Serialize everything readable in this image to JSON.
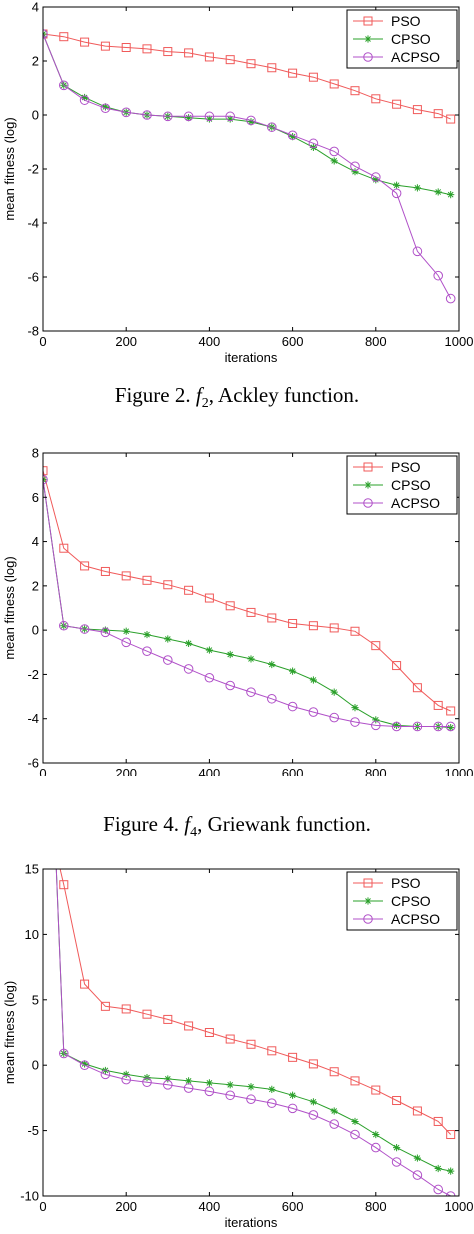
{
  "captions": [
    {
      "prefix": "Figure 2. ",
      "fname": "f",
      "fsub": "2",
      "suffix": ", Ackley function."
    },
    {
      "prefix": "Figure 4. ",
      "fname": "f",
      "fsub": "4",
      "suffix": ", Griewank function."
    }
  ],
  "chart_data": [
    {
      "type": "line",
      "title": "",
      "xlabel": "iterations",
      "ylabel": "mean fitness (log)",
      "xlim": [
        0,
        1000
      ],
      "ylim": [
        -8,
        4
      ],
      "xticks": [
        0,
        200,
        400,
        600,
        800,
        1000
      ],
      "yticks": [
        -8,
        -6,
        -4,
        -2,
        0,
        2,
        4
      ],
      "grid": false,
      "legend": "top-right",
      "series": [
        {
          "name": "PSO",
          "color": "#f05a5a",
          "marker": "square",
          "x": [
            0,
            50,
            100,
            150,
            200,
            250,
            300,
            350,
            400,
            450,
            500,
            550,
            600,
            650,
            700,
            750,
            800,
            850,
            900,
            950,
            980
          ],
          "y": [
            3.0,
            2.9,
            2.7,
            2.55,
            2.5,
            2.45,
            2.35,
            2.3,
            2.15,
            2.05,
            1.9,
            1.75,
            1.55,
            1.4,
            1.15,
            0.9,
            0.6,
            0.4,
            0.2,
            0.05,
            -0.15
          ]
        },
        {
          "name": "CPSO",
          "color": "#2aa02a",
          "marker": "star",
          "x": [
            0,
            50,
            100,
            150,
            200,
            250,
            300,
            350,
            400,
            450,
            500,
            550,
            600,
            650,
            700,
            750,
            800,
            850,
            900,
            950,
            980
          ],
          "y": [
            3.0,
            1.1,
            0.65,
            0.3,
            0.1,
            0.0,
            -0.05,
            -0.1,
            -0.15,
            -0.15,
            -0.25,
            -0.45,
            -0.8,
            -1.2,
            -1.7,
            -2.1,
            -2.4,
            -2.6,
            -2.7,
            -2.85,
            -2.95
          ]
        },
        {
          "name": "ACPSO",
          "color": "#b050c8",
          "marker": "circle",
          "x": [
            0,
            50,
            100,
            150,
            200,
            250,
            300,
            350,
            400,
            450,
            500,
            550,
            600,
            650,
            700,
            750,
            800,
            850,
            900,
            950,
            980
          ],
          "y": [
            3.0,
            1.1,
            0.55,
            0.25,
            0.1,
            0.0,
            -0.05,
            -0.05,
            -0.05,
            -0.05,
            -0.2,
            -0.45,
            -0.75,
            -1.05,
            -1.35,
            -1.9,
            -2.3,
            -2.9,
            -5.05,
            -5.95,
            -6.8
          ]
        }
      ]
    },
    {
      "type": "line",
      "title": "",
      "xlabel": "iterations",
      "ylabel": "mean fitness (log)",
      "xlim": [
        0,
        1000
      ],
      "ylim": [
        -6,
        8
      ],
      "xticks": [
        0,
        200,
        400,
        600,
        800,
        1000
      ],
      "yticks": [
        -6,
        -4,
        -2,
        0,
        2,
        4,
        6,
        8
      ],
      "grid": false,
      "legend": "top-right",
      "series": [
        {
          "name": "PSO",
          "color": "#f05a5a",
          "marker": "square",
          "x": [
            0,
            50,
            100,
            150,
            200,
            250,
            300,
            350,
            400,
            450,
            500,
            550,
            600,
            650,
            700,
            750,
            800,
            850,
            900,
            950,
            980
          ],
          "y": [
            7.2,
            3.7,
            2.9,
            2.65,
            2.45,
            2.25,
            2.05,
            1.8,
            1.45,
            1.1,
            0.8,
            0.55,
            0.3,
            0.2,
            0.1,
            -0.05,
            -0.7,
            -1.6,
            -2.6,
            -3.4,
            -3.65
          ]
        },
        {
          "name": "CPSO",
          "color": "#2aa02a",
          "marker": "star",
          "x": [
            0,
            50,
            100,
            150,
            200,
            250,
            300,
            350,
            400,
            450,
            500,
            550,
            600,
            650,
            700,
            750,
            800,
            850,
            900,
            950,
            980
          ],
          "y": [
            6.8,
            0.2,
            0.05,
            0.0,
            -0.05,
            -0.2,
            -0.4,
            -0.6,
            -0.9,
            -1.1,
            -1.3,
            -1.55,
            -1.85,
            -2.25,
            -2.8,
            -3.5,
            -4.05,
            -4.3,
            -4.35,
            -4.35,
            -4.4
          ]
        },
        {
          "name": "ACPSO",
          "color": "#b050c8",
          "marker": "circle",
          "x": [
            0,
            50,
            100,
            150,
            200,
            250,
            300,
            350,
            400,
            450,
            500,
            550,
            600,
            650,
            700,
            750,
            800,
            850,
            900,
            950,
            980
          ],
          "y": [
            6.8,
            0.2,
            0.05,
            -0.1,
            -0.55,
            -0.95,
            -1.35,
            -1.75,
            -2.15,
            -2.5,
            -2.8,
            -3.1,
            -3.45,
            -3.7,
            -3.95,
            -4.15,
            -4.3,
            -4.35,
            -4.35,
            -4.35,
            -4.35
          ]
        }
      ]
    },
    {
      "type": "line",
      "title": "",
      "xlabel": "iterations",
      "ylabel": "mean fitness (log)",
      "xlim": [
        0,
        1000
      ],
      "ylim": [
        -10,
        15
      ],
      "xticks": [
        0,
        200,
        400,
        600,
        800,
        1000
      ],
      "yticks": [
        -10,
        -5,
        0,
        5,
        10,
        15
      ],
      "grid": false,
      "legend": "top-right",
      "series": [
        {
          "name": "PSO",
          "color": "#f05a5a",
          "marker": "square",
          "x": [
            30,
            50,
            100,
            150,
            200,
            250,
            300,
            350,
            400,
            450,
            500,
            550,
            600,
            650,
            700,
            750,
            800,
            850,
            900,
            950,
            980
          ],
          "y": [
            16.5,
            13.8,
            6.2,
            4.5,
            4.3,
            3.9,
            3.5,
            3.0,
            2.5,
            2.0,
            1.6,
            1.1,
            0.6,
            0.1,
            -0.5,
            -1.2,
            -1.9,
            -2.7,
            -3.5,
            -4.3,
            -5.3
          ]
        },
        {
          "name": "CPSO",
          "color": "#2aa02a",
          "marker": "star",
          "x": [
            30,
            50,
            100,
            150,
            200,
            250,
            300,
            350,
            400,
            450,
            500,
            550,
            600,
            650,
            700,
            750,
            800,
            850,
            900,
            950,
            980
          ],
          "y": [
            16.5,
            0.9,
            0.1,
            -0.4,
            -0.7,
            -0.95,
            -1.05,
            -1.2,
            -1.35,
            -1.5,
            -1.65,
            -1.85,
            -2.3,
            -2.8,
            -3.5,
            -4.3,
            -5.3,
            -6.3,
            -7.1,
            -7.9,
            -8.1
          ]
        },
        {
          "name": "ACPSO",
          "color": "#b050c8",
          "marker": "circle",
          "x": [
            30,
            50,
            100,
            150,
            200,
            250,
            300,
            350,
            400,
            450,
            500,
            550,
            600,
            650,
            700,
            750,
            800,
            850,
            900,
            950,
            980
          ],
          "y": [
            16.5,
            0.9,
            0.0,
            -0.7,
            -1.1,
            -1.3,
            -1.5,
            -1.75,
            -2.0,
            -2.3,
            -2.6,
            -2.9,
            -3.3,
            -3.8,
            -4.5,
            -5.3,
            -6.3,
            -7.4,
            -8.4,
            -9.5,
            -10.0
          ]
        }
      ]
    }
  ]
}
